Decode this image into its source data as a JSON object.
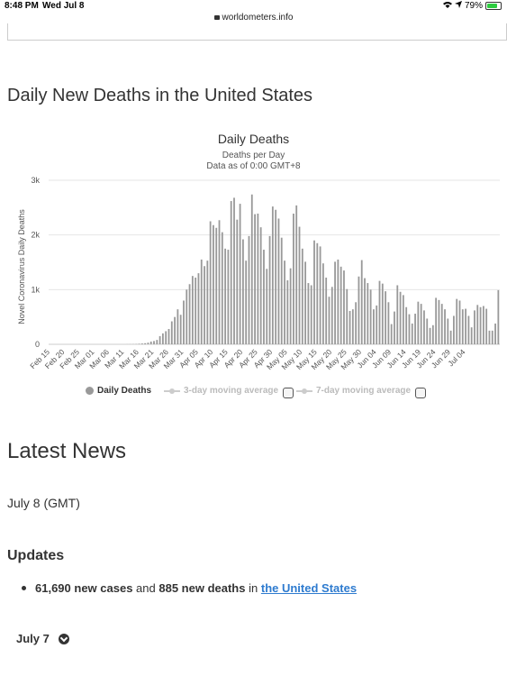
{
  "status": {
    "time": "8:48 PM",
    "date": "Wed Jul 8",
    "battery": "79%"
  },
  "browser": {
    "url": "worldometers.info"
  },
  "section": {
    "title": "Daily New Deaths in the United States"
  },
  "chart_data": {
    "type": "bar",
    "title": "Daily Deaths",
    "subtitle": "Deaths per Day",
    "subtitle2": "Data as of 0:00 GMT+8",
    "ylabel": "Novel Coronavirus Daily Deaths",
    "ylim": [
      0,
      3000
    ],
    "yticks": [
      0,
      1000,
      2000,
      3000
    ],
    "ytick_labels": [
      "0",
      "1k",
      "2k",
      "3k"
    ],
    "tick_labels": [
      "Feb 15",
      "Feb 20",
      "Feb 25",
      "Mar 01",
      "Mar 06",
      "Mar 11",
      "Mar 16",
      "Mar 21",
      "Mar 26",
      "Mar 31",
      "Apr 05",
      "Apr 10",
      "Apr 15",
      "Apr 20",
      "Apr 25",
      "Apr 30",
      "May 05",
      "May 10",
      "May 15",
      "May 20",
      "May 25",
      "May 30",
      "Jun 04",
      "Jun 09",
      "Jun 14",
      "Jun 19",
      "Jun 24",
      "Jun 29",
      "Jul 04"
    ],
    "bar_color": "#999999",
    "values": [
      0,
      0,
      0,
      0,
      0,
      0,
      0,
      0,
      0,
      0,
      0,
      0,
      0,
      0,
      0,
      0,
      0,
      0,
      0,
      0,
      0,
      0,
      0,
      0,
      0,
      0,
      1,
      2,
      3,
      5,
      10,
      15,
      20,
      30,
      50,
      60,
      80,
      150,
      200,
      240,
      280,
      420,
      500,
      640,
      540,
      800,
      1000,
      1100,
      1250,
      1220,
      1300,
      1550,
      1430,
      1530,
      2250,
      2180,
      2130,
      2270,
      2050,
      1750,
      1730,
      2620,
      2680,
      2280,
      2570,
      1920,
      1530,
      1980,
      2740,
      2380,
      2390,
      2140,
      1730,
      1380,
      1980,
      2520,
      2460,
      2300,
      1950,
      1530,
      1170,
      1390,
      2390,
      2540,
      2150,
      1750,
      1510,
      1120,
      1080,
      1900,
      1850,
      1790,
      1480,
      1220,
      870,
      1050,
      1510,
      1550,
      1420,
      1350,
      1010,
      610,
      640,
      770,
      1240,
      1540,
      1210,
      1120,
      1000,
      640,
      710,
      1160,
      1110,
      970,
      770,
      370,
      600,
      1080,
      960,
      900,
      680,
      550,
      380,
      560,
      780,
      740,
      620,
      470,
      300,
      350,
      850,
      810,
      740,
      640,
      470,
      250,
      520,
      830,
      800,
      640,
      650,
      520,
      310,
      620,
      720,
      680,
      700,
      650,
      250,
      250,
      380,
      990
    ]
  },
  "legend": {
    "daily": "Daily Deaths",
    "ma3": "3-day moving average",
    "ma7": "7-day moving average"
  },
  "news": {
    "heading": "Latest News",
    "date": "July 8 (GMT)",
    "updates_heading": "Updates",
    "update": {
      "cases": "61,690 new cases",
      "and": "and",
      "deaths": "885 new deaths",
      "in": "in",
      "place": "the United States"
    },
    "july7": "July 7"
  }
}
